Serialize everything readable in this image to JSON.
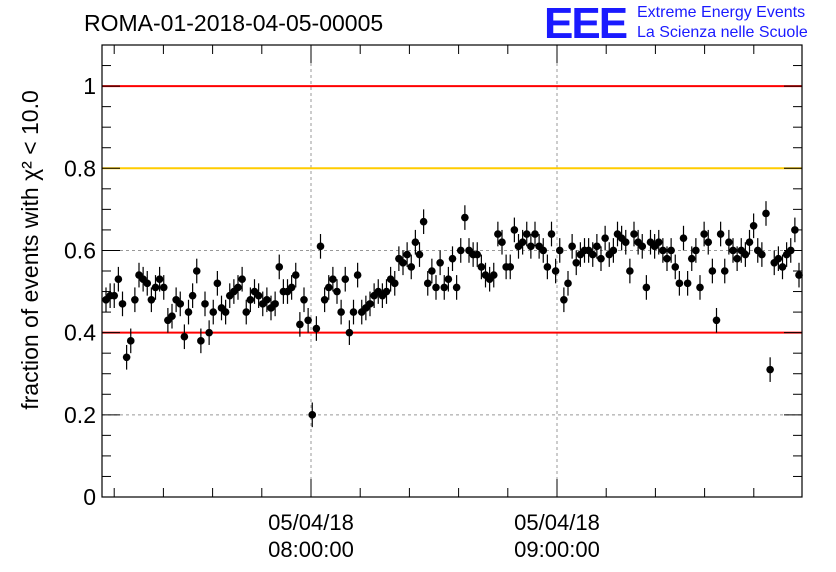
{
  "title": "ROMA-01-2018-04-05-00005",
  "logo": {
    "mark": "EEE",
    "line1": "Extreme Energy Events",
    "line2": "La Scienza nelle Scuole"
  },
  "colors": {
    "red_line": "#ff0000",
    "yellow_line": "#ffcc00",
    "points": "#000000",
    "logo": "#1a1aff"
  },
  "chart_data": {
    "type": "scatter",
    "title": "ROMA-01-2018-04-05-00005",
    "xlabel": "",
    "ylabel": "fraction of events with χ² < 10.0",
    "ylim": [
      0,
      1.1
    ],
    "yticks": [
      "0",
      "0.2",
      "0.4",
      "0.6",
      "0.8",
      "1"
    ],
    "xticks": [
      {
        "date": "05/04/18",
        "time": "08:00:00"
      },
      {
        "date": "05/04/18",
        "time": "09:00:00"
      }
    ],
    "xrange_hours": [
      "07:10",
      "10:00"
    ],
    "grid": true,
    "reference_lines": [
      {
        "y": 1.0,
        "color": "#ff0000"
      },
      {
        "y": 0.8,
        "color": "#ffcc00"
      },
      {
        "y": 0.4,
        "color": "#ff0000"
      }
    ],
    "error_bar": 0.03,
    "series": [
      {
        "values": [
          0.48,
          0.49,
          0.49,
          0.53,
          0.47,
          0.34,
          0.38,
          0.48,
          0.54,
          0.53,
          0.52,
          0.48,
          0.51,
          0.53,
          0.51,
          0.43,
          0.44,
          0.48,
          0.47,
          0.39,
          0.45,
          0.49,
          0.55,
          0.38,
          0.47,
          0.4,
          0.45,
          0.52,
          0.46,
          0.45,
          0.49,
          0.5,
          0.51,
          0.53,
          0.45,
          0.48,
          0.5,
          0.49,
          0.47,
          0.48,
          0.46,
          0.47,
          0.56,
          0.5,
          0.5,
          0.51,
          0.54,
          0.42,
          0.48,
          0.43,
          0.2,
          0.41,
          0.61,
          0.48,
          0.51,
          0.53,
          0.5,
          0.45,
          0.53,
          0.4,
          0.45,
          0.54,
          0.45,
          0.46,
          0.47,
          0.49,
          0.5,
          0.49,
          0.5,
          0.53,
          0.52,
          0.58,
          0.57,
          0.59,
          0.56,
          0.62,
          0.59,
          0.67,
          0.52,
          0.55,
          0.51,
          0.57,
          0.51,
          0.53,
          0.58,
          0.51,
          0.6,
          0.68,
          0.6,
          0.59,
          0.59,
          0.56,
          0.54,
          0.53,
          0.54,
          0.64,
          0.62,
          0.56,
          0.56,
          0.65,
          0.61,
          0.62,
          0.64,
          0.61,
          0.64,
          0.61,
          0.6,
          0.56,
          0.64,
          0.55,
          0.6,
          0.48,
          0.52,
          0.61,
          0.57,
          0.59,
          0.6,
          0.6,
          0.59,
          0.61,
          0.58,
          0.63,
          0.59,
          0.6,
          0.64,
          0.63,
          0.62,
          0.55,
          0.64,
          0.62,
          0.61,
          0.51,
          0.62,
          0.61,
          0.62,
          0.6,
          0.58,
          0.6,
          0.56,
          0.52,
          0.63,
          0.52,
          0.58,
          0.6,
          0.51,
          0.64,
          0.62,
          0.55,
          0.43,
          0.64,
          0.55,
          0.62,
          0.6,
          0.58,
          0.6,
          0.59,
          0.62,
          0.66,
          0.6,
          0.59,
          0.69,
          0.31,
          0.57,
          0.58,
          0.56,
          0.59,
          0.6,
          0.65,
          0.54
        ]
      }
    ]
  }
}
